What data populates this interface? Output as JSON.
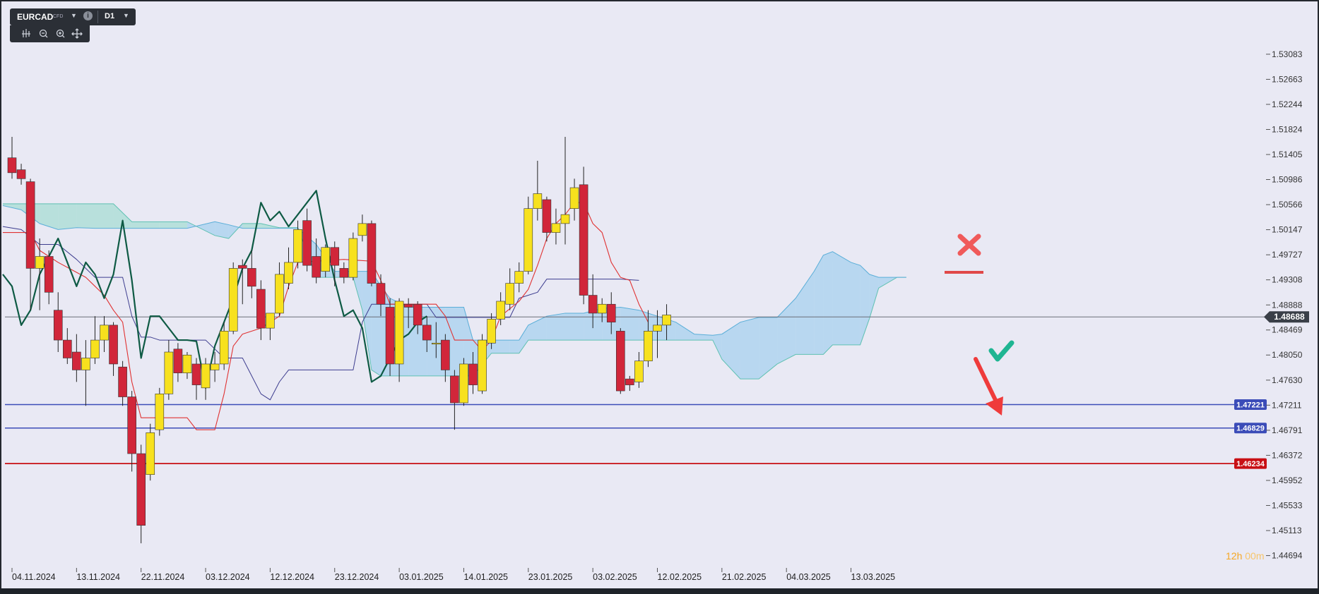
{
  "toolbar": {
    "symbol": "EURCAD",
    "symbol_type": "CFD",
    "timeframe": "D1",
    "icons": [
      "chevron-down-icon",
      "info-icon",
      "chevron-down-icon",
      "bar-style-icon",
      "zoom-out-icon",
      "zoom-in-icon",
      "crosshair-icon"
    ]
  },
  "timer": {
    "hours": "12h",
    "minutes": "00m"
  },
  "colors": {
    "background": "#e9e9f4",
    "bull": "#f7e11e",
    "bear": "#d1263a",
    "cloud_bull": "#8fd9c8",
    "cloud_bear": "#8fc8ec",
    "tenkan": "#e03232",
    "kijun": "#3d3d8f",
    "chikou": "#0e5a44",
    "support": "#3b4cb8",
    "red_level": "#c80f14"
  },
  "chart_data": {
    "type": "candlestick",
    "symbol": "EURCAD",
    "timeframe": "D1",
    "indicator": "Ichimoku",
    "ylim": [
      1.445,
      1.534
    ],
    "y_ticks": [
      "1.53083",
      "1.52663",
      "1.52244",
      "1.51824",
      "1.51405",
      "1.50986",
      "1.50566",
      "1.50147",
      "1.49727",
      "1.49308",
      "1.48888",
      "1.48469",
      "1.48050",
      "1.47630",
      "1.47211",
      "1.46791",
      "1.46372",
      "1.45952",
      "1.45533",
      "1.45113",
      "1.44694"
    ],
    "x_ticks": [
      "04.11.2024",
      "13.11.2024",
      "22.11.2024",
      "03.12.2024",
      "12.12.2024",
      "23.12.2024",
      "03.01.2025",
      "14.01.2025",
      "23.01.2025",
      "03.02.2025",
      "12.02.2025",
      "21.02.2025",
      "04.03.2025",
      "13.03.2025"
    ],
    "x_tick_index": [
      0,
      7,
      14,
      21,
      28,
      35,
      42,
      49,
      56,
      63,
      70,
      77,
      84,
      91
    ],
    "current_price": "1.48688",
    "price_lines": [
      {
        "label": "1.48688",
        "value": 1.48688,
        "kind": "current"
      },
      {
        "label": "1.47221",
        "value": 1.47221,
        "kind": "support"
      },
      {
        "label": "1.46829",
        "value": 1.46829,
        "kind": "support"
      },
      {
        "label": "1.46234",
        "value": 1.46234,
        "kind": "resistance"
      }
    ],
    "candles": [
      {
        "o": 1.5135,
        "h": 1.517,
        "l": 1.51,
        "c": 1.511
      },
      {
        "o": 1.5115,
        "h": 1.5125,
        "l": 1.509,
        "c": 1.51
      },
      {
        "o": 1.5095,
        "h": 1.51,
        "l": 1.488,
        "c": 1.495
      },
      {
        "o": 1.495,
        "h": 1.5,
        "l": 1.488,
        "c": 1.497
      },
      {
        "o": 1.497,
        "h": 1.498,
        "l": 1.489,
        "c": 1.491
      },
      {
        "o": 1.488,
        "h": 1.491,
        "l": 1.481,
        "c": 1.483
      },
      {
        "o": 1.483,
        "h": 1.485,
        "l": 1.479,
        "c": 1.48
      },
      {
        "o": 1.481,
        "h": 1.484,
        "l": 1.476,
        "c": 1.478
      },
      {
        "o": 1.478,
        "h": 1.483,
        "l": 1.472,
        "c": 1.48
      },
      {
        "o": 1.48,
        "h": 1.487,
        "l": 1.479,
        "c": 1.483
      },
      {
        "o": 1.483,
        "h": 1.487,
        "l": 1.481,
        "c": 1.4855
      },
      {
        "o": 1.4855,
        "h": 1.486,
        "l": 1.477,
        "c": 1.479
      },
      {
        "o": 1.4785,
        "h": 1.4795,
        "l": 1.472,
        "c": 1.4735
      },
      {
        "o": 1.4735,
        "h": 1.4745,
        "l": 1.461,
        "c": 1.464
      },
      {
        "o": 1.464,
        "h": 1.4655,
        "l": 1.449,
        "c": 1.452
      },
      {
        "o": 1.4605,
        "h": 1.469,
        "l": 1.4595,
        "c": 1.4675
      },
      {
        "o": 1.468,
        "h": 1.475,
        "l": 1.467,
        "c": 1.474
      },
      {
        "o": 1.474,
        "h": 1.483,
        "l": 1.473,
        "c": 1.481
      },
      {
        "o": 1.4815,
        "h": 1.4825,
        "l": 1.476,
        "c": 1.4775
      },
      {
        "o": 1.4775,
        "h": 1.481,
        "l": 1.4765,
        "c": 1.4805
      },
      {
        "o": 1.479,
        "h": 1.48,
        "l": 1.473,
        "c": 1.4755
      },
      {
        "o": 1.475,
        "h": 1.48,
        "l": 1.473,
        "c": 1.479
      },
      {
        "o": 1.478,
        "h": 1.481,
        "l": 1.476,
        "c": 1.479
      },
      {
        "o": 1.479,
        "h": 1.486,
        "l": 1.478,
        "c": 1.4845
      },
      {
        "o": 1.4845,
        "h": 1.496,
        "l": 1.484,
        "c": 1.495
      },
      {
        "o": 1.4955,
        "h": 1.4965,
        "l": 1.489,
        "c": 1.495
      },
      {
        "o": 1.495,
        "h": 1.498,
        "l": 1.49,
        "c": 1.492
      },
      {
        "o": 1.4915,
        "h": 1.493,
        "l": 1.483,
        "c": 1.485
      },
      {
        "o": 1.485,
        "h": 1.487,
        "l": 1.483,
        "c": 1.4875
      },
      {
        "o": 1.4875,
        "h": 1.496,
        "l": 1.487,
        "c": 1.494
      },
      {
        "o": 1.4925,
        "h": 1.4985,
        "l": 1.4915,
        "c": 1.496
      },
      {
        "o": 1.496,
        "h": 1.503,
        "l": 1.495,
        "c": 1.5015
      },
      {
        "o": 1.503,
        "h": 1.505,
        "l": 1.4945,
        "c": 1.4955
      },
      {
        "o": 1.497,
        "h": 1.5,
        "l": 1.4925,
        "c": 1.4935
      },
      {
        "o": 1.4945,
        "h": 1.499,
        "l": 1.4935,
        "c": 1.4985
      },
      {
        "o": 1.4985,
        "h": 1.4995,
        "l": 1.492,
        "c": 1.4955
      },
      {
        "o": 1.495,
        "h": 1.496,
        "l": 1.4925,
        "c": 1.4935
      },
      {
        "o": 1.4935,
        "h": 1.501,
        "l": 1.493,
        "c": 1.5
      },
      {
        "o": 1.5005,
        "h": 1.504,
        "l": 1.4995,
        "c": 1.5025
      },
      {
        "o": 1.5025,
        "h": 1.503,
        "l": 1.492,
        "c": 1.4925
      },
      {
        "o": 1.4925,
        "h": 1.494,
        "l": 1.487,
        "c": 1.489
      },
      {
        "o": 1.4885,
        "h": 1.49,
        "l": 1.477,
        "c": 1.479
      },
      {
        "o": 1.479,
        "h": 1.49,
        "l": 1.476,
        "c": 1.4895
      },
      {
        "o": 1.489,
        "h": 1.49,
        "l": 1.485,
        "c": 1.4885
      },
      {
        "o": 1.489,
        "h": 1.4895,
        "l": 1.484,
        "c": 1.4855
      },
      {
        "o": 1.4855,
        "h": 1.487,
        "l": 1.481,
        "c": 1.483
      },
      {
        "o": 1.4825,
        "h": 1.486,
        "l": 1.48,
        "c": 1.4825
      },
      {
        "o": 1.483,
        "h": 1.484,
        "l": 1.476,
        "c": 1.478
      },
      {
        "o": 1.477,
        "h": 1.478,
        "l": 1.468,
        "c": 1.4725
      },
      {
        "o": 1.4725,
        "h": 1.48,
        "l": 1.472,
        "c": 1.479
      },
      {
        "o": 1.479,
        "h": 1.481,
        "l": 1.474,
        "c": 1.4755
      },
      {
        "o": 1.4745,
        "h": 1.484,
        "l": 1.474,
        "c": 1.483
      },
      {
        "o": 1.4825,
        "h": 1.4875,
        "l": 1.4815,
        "c": 1.4865
      },
      {
        "o": 1.4865,
        "h": 1.491,
        "l": 1.4855,
        "c": 1.4895
      },
      {
        "o": 1.489,
        "h": 1.495,
        "l": 1.488,
        "c": 1.4925
      },
      {
        "o": 1.4925,
        "h": 1.496,
        "l": 1.491,
        "c": 1.4945
      },
      {
        "o": 1.4945,
        "h": 1.507,
        "l": 1.494,
        "c": 1.505
      },
      {
        "o": 1.505,
        "h": 1.513,
        "l": 1.503,
        "c": 1.5075
      },
      {
        "o": 1.5065,
        "h": 1.507,
        "l": 1.4995,
        "c": 1.501
      },
      {
        "o": 1.501,
        "h": 1.505,
        "l": 1.499,
        "c": 1.5025
      },
      {
        "o": 1.5025,
        "h": 1.517,
        "l": 1.499,
        "c": 1.504
      },
      {
        "o": 1.505,
        "h": 1.51,
        "l": 1.503,
        "c": 1.5085
      },
      {
        "o": 1.509,
        "h": 1.512,
        "l": 1.489,
        "c": 1.4905
      },
      {
        "o": 1.4905,
        "h": 1.494,
        "l": 1.485,
        "c": 1.4875
      },
      {
        "o": 1.4875,
        "h": 1.49,
        "l": 1.486,
        "c": 1.489
      },
      {
        "o": 1.489,
        "h": 1.491,
        "l": 1.484,
        "c": 1.486
      },
      {
        "o": 1.4845,
        "h": 1.485,
        "l": 1.474,
        "c": 1.4745
      },
      {
        "o": 1.4765,
        "h": 1.477,
        "l": 1.4745,
        "c": 1.4755
      },
      {
        "o": 1.476,
        "h": 1.481,
        "l": 1.475,
        "c": 1.4795
      },
      {
        "o": 1.4795,
        "h": 1.488,
        "l": 1.4785,
        "c": 1.4845
      },
      {
        "o": 1.4845,
        "h": 1.488,
        "l": 1.48,
        "c": 1.4855
      },
      {
        "o": 1.4855,
        "h": 1.489,
        "l": 1.483,
        "c": 1.4872
      }
    ],
    "cloud": [
      {
        "i": -1,
        "a": 1.5058,
        "b": 1.5055
      },
      {
        "i": 1,
        "a": 1.5058,
        "b": 1.5048
      },
      {
        "i": 3,
        "a": 1.5058,
        "b": 1.5025
      },
      {
        "i": 5,
        "a": 1.5058,
        "b": 1.5015
      },
      {
        "i": 7,
        "a": 1.5058,
        "b": 1.5018
      },
      {
        "i": 9,
        "a": 1.5058,
        "b": 1.5017
      },
      {
        "i": 11,
        "a": 1.5058,
        "b": 1.5017
      },
      {
        "i": 13,
        "a": 1.5028,
        "b": 1.5017
      },
      {
        "i": 16,
        "a": 1.5028,
        "b": 1.5017
      },
      {
        "i": 19,
        "a": 1.5028,
        "b": 1.5017
      },
      {
        "i": 22,
        "a": 1.5005,
        "b": 1.5028
      },
      {
        "i": 23.5,
        "a": 1.5,
        "b": 1.5023
      },
      {
        "i": 25,
        "a": 1.5025,
        "b": 1.5017
      },
      {
        "i": 27,
        "a": 1.5025,
        "b": 1.5017
      },
      {
        "i": 29,
        "a": 1.5018,
        "b": 1.5017
      },
      {
        "i": 31,
        "a": 1.5018,
        "b": 1.5017
      },
      {
        "i": 33,
        "a": 1.4935,
        "b": 1.499
      },
      {
        "i": 35,
        "a": 1.4935,
        "b": 1.4945
      },
      {
        "i": 37,
        "a": 1.4935,
        "b": 1.4945
      },
      {
        "i": 38,
        "a": 1.488,
        "b": 1.4945
      },
      {
        "i": 39,
        "a": 1.478,
        "b": 1.4945
      },
      {
        "i": 40,
        "a": 1.477,
        "b": 1.492
      },
      {
        "i": 41,
        "a": 1.477,
        "b": 1.49
      },
      {
        "i": 43,
        "a": 1.477,
        "b": 1.4885
      },
      {
        "i": 45,
        "a": 1.477,
        "b": 1.4885
      },
      {
        "i": 47,
        "a": 1.477,
        "b": 1.4885
      },
      {
        "i": 49,
        "a": 1.477,
        "b": 1.4885
      },
      {
        "i": 50,
        "a": 1.477,
        "b": 1.483
      },
      {
        "i": 52,
        "a": 1.4808,
        "b": 1.483
      },
      {
        "i": 54,
        "a": 1.4808,
        "b": 1.483
      },
      {
        "i": 55,
        "a": 1.4808,
        "b": 1.483
      },
      {
        "i": 56,
        "a": 1.483,
        "b": 1.4855
      },
      {
        "i": 58,
        "a": 1.483,
        "b": 1.487
      },
      {
        "i": 60,
        "a": 1.483,
        "b": 1.4875
      },
      {
        "i": 62,
        "a": 1.483,
        "b": 1.4875
      },
      {
        "i": 64,
        "a": 1.483,
        "b": 1.4883
      },
      {
        "i": 66,
        "a": 1.483,
        "b": 1.4885
      },
      {
        "i": 68,
        "a": 1.483,
        "b": 1.488
      },
      {
        "i": 70,
        "a": 1.483,
        "b": 1.487
      },
      {
        "i": 72,
        "a": 1.483,
        "b": 1.486
      },
      {
        "i": 74,
        "a": 1.483,
        "b": 1.484
      },
      {
        "i": 76,
        "a": 1.483,
        "b": 1.4838
      },
      {
        "i": 77,
        "a": 1.4798,
        "b": 1.484
      },
      {
        "i": 79,
        "a": 1.4765,
        "b": 1.486
      },
      {
        "i": 81,
        "a": 1.4765,
        "b": 1.4868
      },
      {
        "i": 83,
        "a": 1.479,
        "b": 1.4868
      },
      {
        "i": 85,
        "a": 1.4806,
        "b": 1.49
      },
      {
        "i": 87,
        "a": 1.4806,
        "b": 1.4945
      },
      {
        "i": 88,
        "a": 1.4806,
        "b": 1.4972
      },
      {
        "i": 89,
        "a": 1.4822,
        "b": 1.4978
      },
      {
        "i": 91,
        "a": 1.4822,
        "b": 1.496
      },
      {
        "i": 92,
        "a": 1.4822,
        "b": 1.4955
      },
      {
        "i": 93,
        "a": 1.4866,
        "b": 1.494
      },
      {
        "i": 94,
        "a": 1.4917,
        "b": 1.4935
      },
      {
        "i": 96,
        "a": 1.4935,
        "b": 1.4935
      },
      {
        "i": 97,
        "a": 1.4935,
        "b": 1.4935
      }
    ],
    "tenkan": [
      [
        -1,
        1.501
      ],
      [
        0,
        1.501
      ],
      [
        2,
        1.501
      ],
      [
        3,
        1.498
      ],
      [
        5,
        1.496
      ],
      [
        8,
        1.4935
      ],
      [
        10,
        1.4905
      ],
      [
        11,
        1.488
      ],
      [
        12,
        1.486
      ],
      [
        13,
        1.476
      ],
      [
        14,
        1.47
      ],
      [
        19,
        1.47
      ],
      [
        20,
        1.468
      ],
      [
        22,
        1.468
      ],
      [
        23,
        1.474
      ],
      [
        24,
        1.482
      ],
      [
        25,
        1.484
      ],
      [
        27,
        1.485
      ],
      [
        29,
        1.487
      ],
      [
        30,
        1.492
      ],
      [
        31,
        1.496
      ],
      [
        36,
        1.4965
      ],
      [
        39,
        1.4962
      ],
      [
        40,
        1.493
      ],
      [
        41,
        1.489
      ],
      [
        43,
        1.489
      ],
      [
        46,
        1.489
      ],
      [
        47,
        1.487
      ],
      [
        48,
        1.483
      ],
      [
        50,
        1.483
      ],
      [
        51,
        1.4812
      ],
      [
        52,
        1.483
      ],
      [
        53,
        1.487
      ],
      [
        55,
        1.4895
      ],
      [
        56,
        1.4915
      ],
      [
        57,
        1.4955
      ],
      [
        58,
        1.5
      ],
      [
        59,
        1.5025
      ],
      [
        60,
        1.504
      ],
      [
        61,
        1.506
      ],
      [
        62,
        1.506
      ],
      [
        63,
        1.5025
      ],
      [
        64,
        1.501
      ],
      [
        65,
        1.496
      ],
      [
        66,
        1.4935
      ],
      [
        67,
        1.493
      ],
      [
        68,
        1.489
      ],
      [
        69,
        1.486
      ]
    ],
    "kijun": [
      [
        -1,
        1.502
      ],
      [
        1,
        1.5015
      ],
      [
        3,
        1.499
      ],
      [
        5,
        1.499
      ],
      [
        7,
        1.4965
      ],
      [
        9,
        1.4935
      ],
      [
        10,
        1.4935
      ],
      [
        12,
        1.4935
      ],
      [
        13,
        1.487
      ],
      [
        14,
        1.4835
      ],
      [
        15,
        1.4835
      ],
      [
        16,
        1.483
      ],
      [
        17,
        1.483
      ],
      [
        18,
        1.483
      ],
      [
        20,
        1.483
      ],
      [
        21,
        1.483
      ],
      [
        23,
        1.48
      ],
      [
        25,
        1.48
      ],
      [
        26,
        1.477
      ],
      [
        27,
        1.474
      ],
      [
        28,
        1.473
      ],
      [
        29,
        1.476
      ],
      [
        30,
        1.478
      ],
      [
        32,
        1.478
      ],
      [
        35,
        1.478
      ],
      [
        37,
        1.478
      ],
      [
        38,
        1.486
      ],
      [
        39,
        1.489
      ],
      [
        41,
        1.489
      ],
      [
        43,
        1.489
      ],
      [
        45,
        1.489
      ],
      [
        46,
        1.4868
      ],
      [
        48,
        1.4868
      ],
      [
        50,
        1.4868
      ],
      [
        52,
        1.4868
      ],
      [
        53,
        1.4868
      ],
      [
        54,
        1.4868
      ],
      [
        55,
        1.49
      ],
      [
        56,
        1.4905
      ],
      [
        57,
        1.491
      ],
      [
        58,
        1.4932
      ],
      [
        60,
        1.4932
      ],
      [
        62,
        1.4932
      ],
      [
        64,
        1.4932
      ],
      [
        66,
        1.4932
      ],
      [
        68,
        1.493
      ]
    ],
    "chikou": [
      [
        -1,
        1.494
      ],
      [
        0,
        1.492
      ],
      [
        1,
        1.4855
      ],
      [
        2,
        1.488
      ],
      [
        3,
        1.494
      ],
      [
        4,
        1.497
      ],
      [
        5,
        1.5
      ],
      [
        6,
        1.496
      ],
      [
        7,
        1.492
      ],
      [
        8,
        1.496
      ],
      [
        9,
        1.494
      ],
      [
        10,
        1.49
      ],
      [
        11,
        1.494
      ],
      [
        12,
        1.503
      ],
      [
        13,
        1.493
      ],
      [
        14,
        1.48
      ],
      [
        15,
        1.487
      ],
      [
        16,
        1.487
      ],
      [
        17,
        1.485
      ],
      [
        18,
        1.483
      ],
      [
        19,
        1.483
      ],
      [
        20,
        1.4828
      ],
      [
        21,
        1.475
      ],
      [
        22,
        1.482
      ],
      [
        23,
        1.486
      ],
      [
        24,
        1.49
      ],
      [
        25,
        1.495
      ],
      [
        26,
        1.498
      ],
      [
        27,
        1.506
      ],
      [
        28,
        1.503
      ],
      [
        29,
        1.5045
      ],
      [
        30,
        1.502
      ],
      [
        31,
        1.504
      ],
      [
        32,
        1.506
      ],
      [
        33,
        1.508
      ],
      [
        34,
        1.5
      ],
      [
        35,
        1.493
      ],
      [
        36,
        1.487
      ],
      [
        37,
        1.488
      ],
      [
        38,
        1.485
      ],
      [
        39,
        1.476
      ],
      [
        40,
        1.477
      ],
      [
        41,
        1.48
      ],
      [
        42,
        1.483
      ],
      [
        43,
        1.484
      ],
      [
        44,
        1.486
      ],
      [
        45,
        1.487
      ]
    ],
    "annotations": [
      {
        "kind": "cross",
        "meaning": "rejected scenario"
      },
      {
        "kind": "check",
        "meaning": "confirmed scenario"
      },
      {
        "kind": "arrow-down",
        "meaning": "bearish target"
      }
    ]
  }
}
